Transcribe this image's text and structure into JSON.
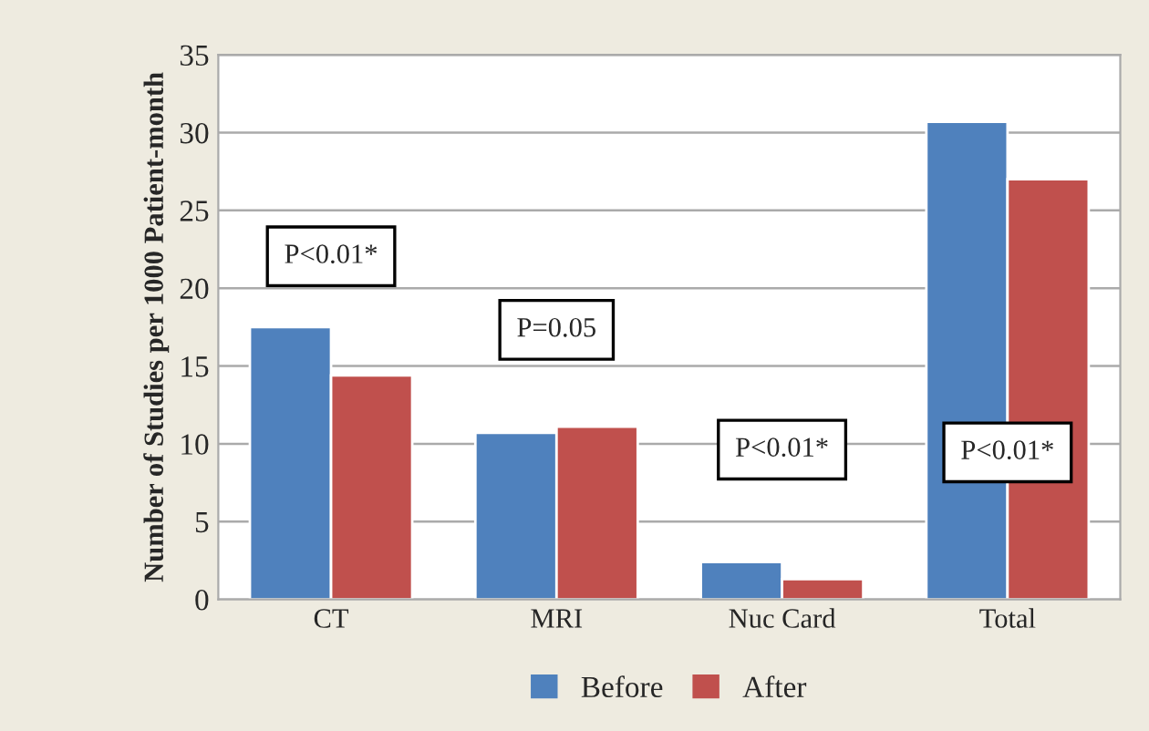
{
  "chart_data": {
    "type": "bar",
    "ylabel": "Number of Studies per 1000 Patient-month",
    "categories": [
      "CT",
      "MRI",
      "Nuc Card",
      "Total"
    ],
    "series": [
      {
        "name": "Before",
        "color": "#4f81bd",
        "values": [
          17.5,
          10.7,
          2.4,
          30.7
        ]
      },
      {
        "name": "After",
        "color": "#c0504d",
        "values": [
          14.4,
          11.1,
          1.3,
          27.0
        ]
      }
    ],
    "ylim": [
      0,
      35
    ],
    "yticks": [
      0,
      5,
      10,
      15,
      20,
      25,
      30,
      35
    ],
    "grid": "y",
    "legend": "bottom",
    "annotations": [
      "P<0.01*",
      "P=0.05",
      "P<0.01*",
      "P<0.01*"
    ]
  }
}
